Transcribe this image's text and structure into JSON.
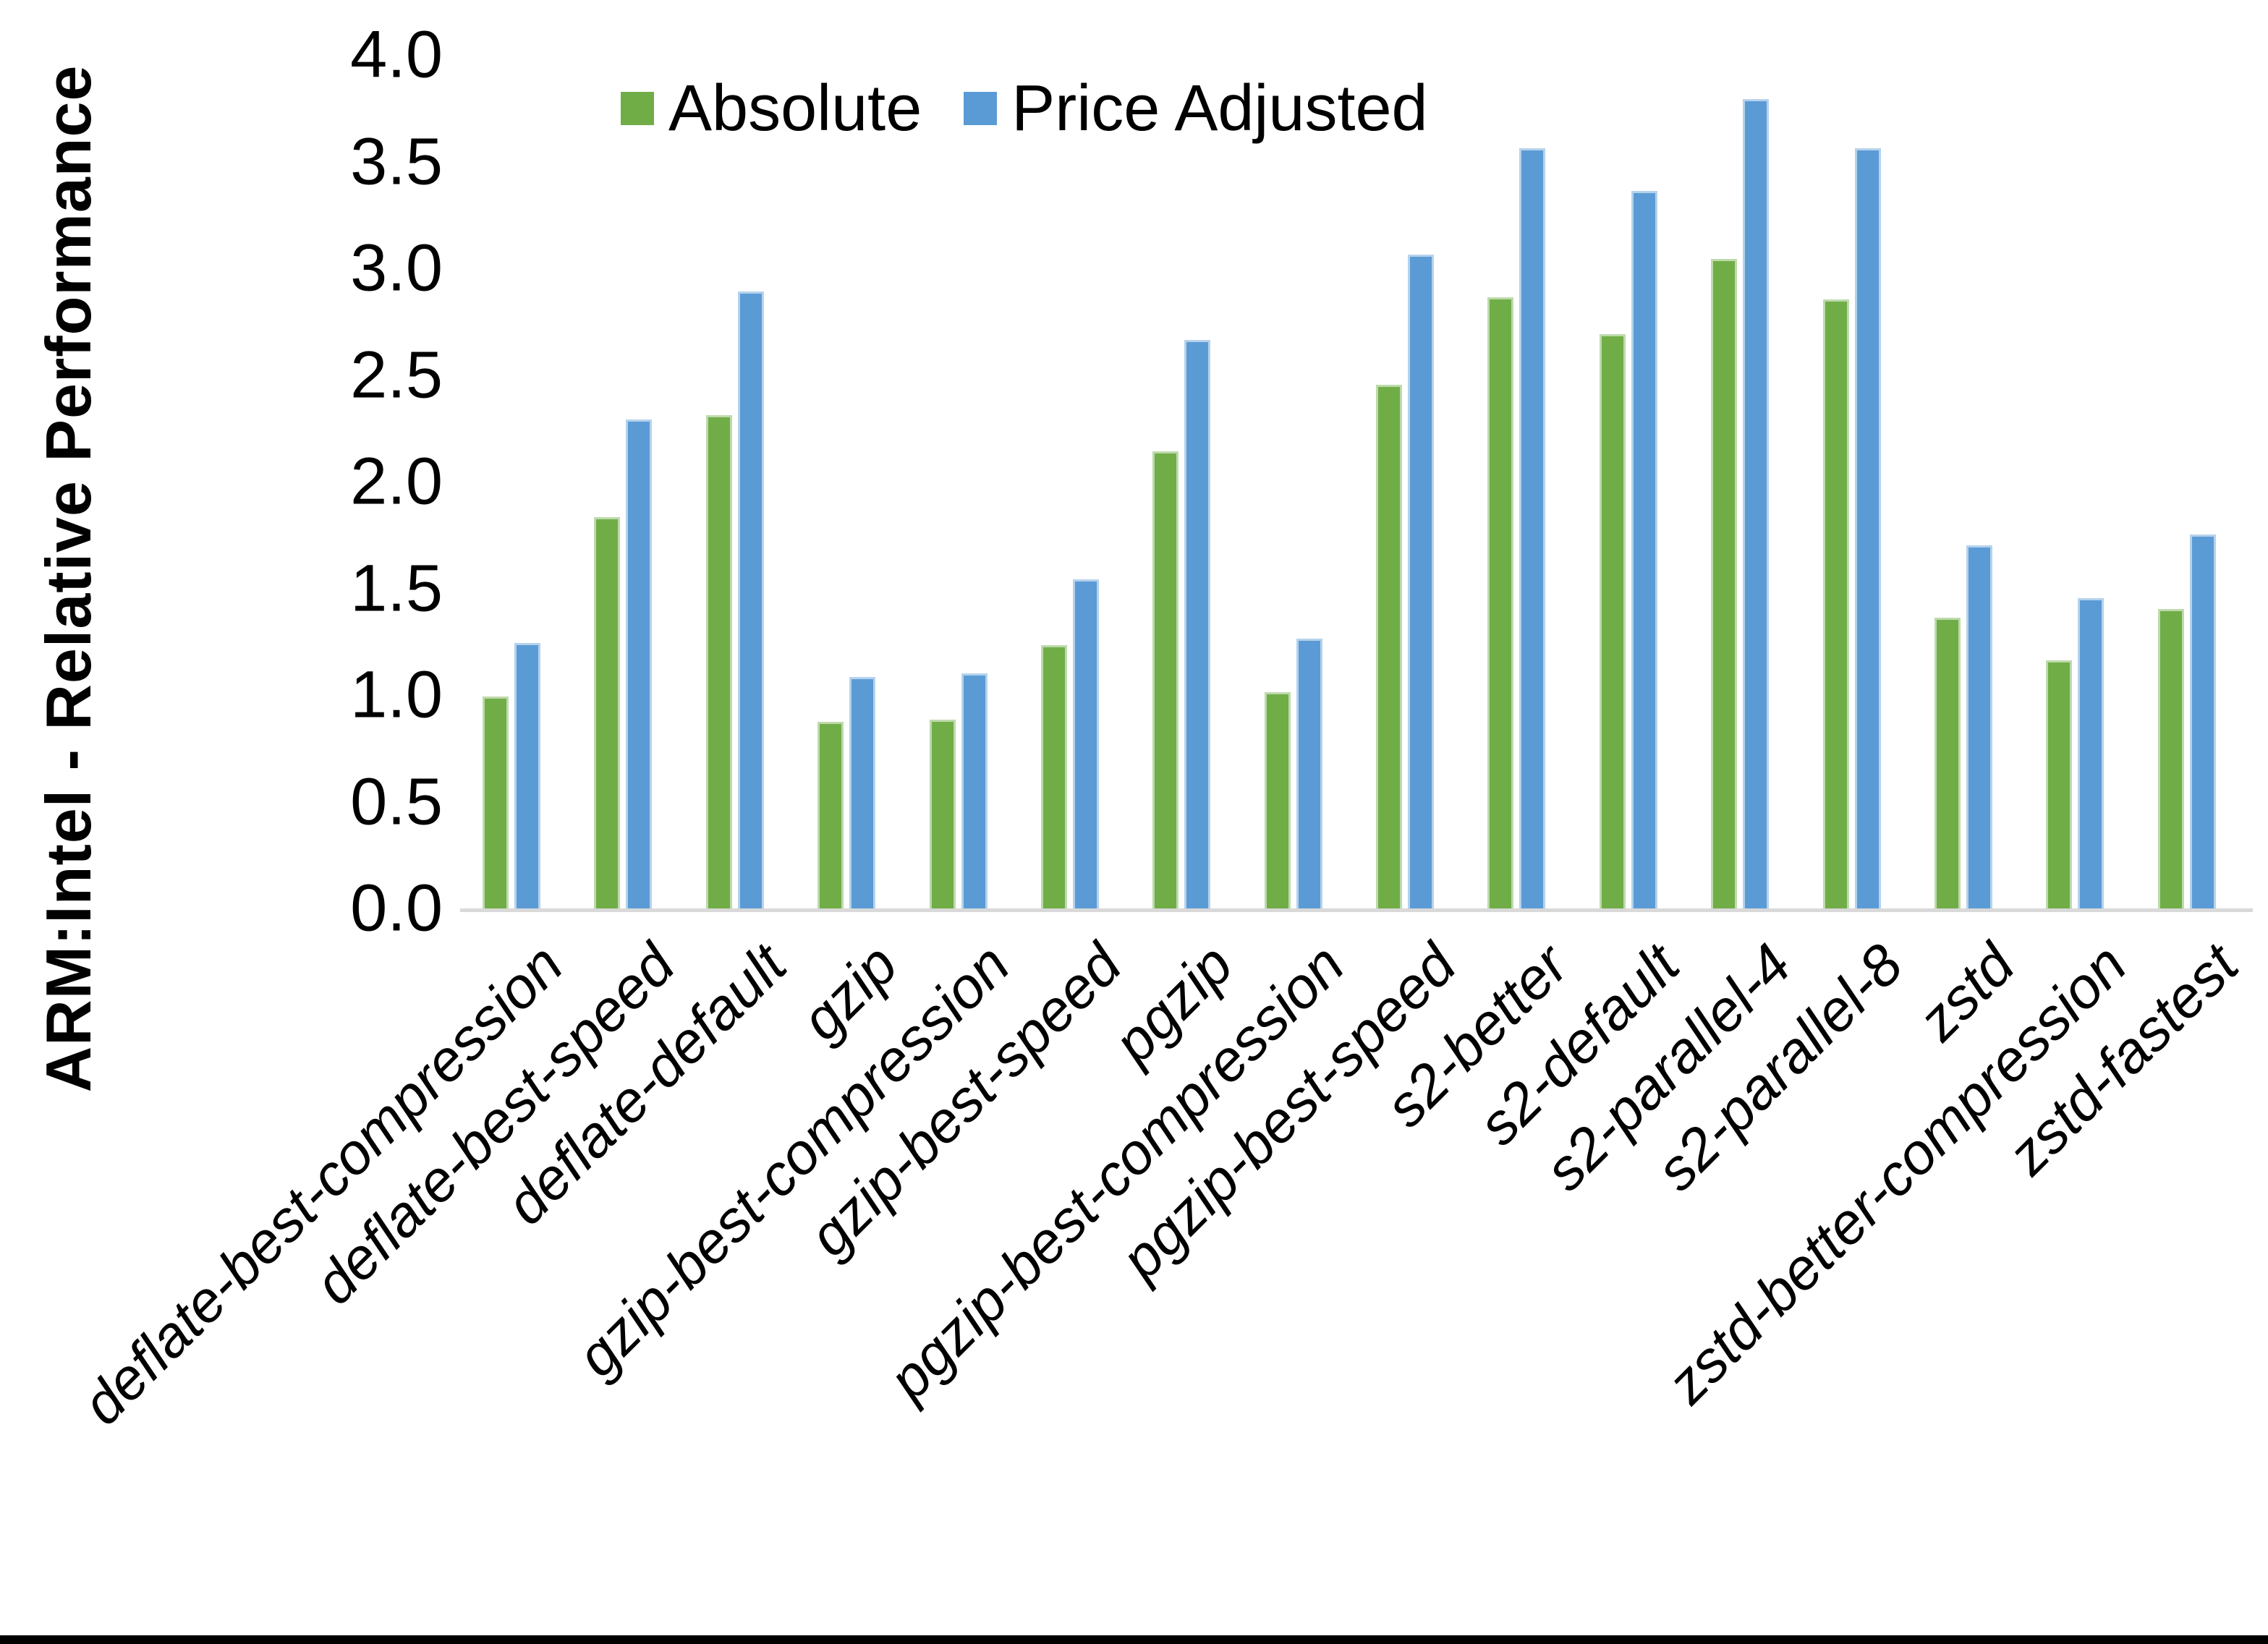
{
  "page": {
    "background_color": "#ffffff",
    "bottom_border_color": "#000000"
  },
  "chart_data": {
    "type": "bar",
    "title": "",
    "xlabel": "",
    "ylabel": "ARM:Intel - Relative Performance",
    "ylim": [
      0.0,
      4.0
    ],
    "ytick_labels": [
      "0.0",
      "0.5",
      "1.0",
      "1.5",
      "2.0",
      "2.5",
      "3.0",
      "3.5",
      "4.0"
    ],
    "grid": false,
    "legend_position": "top-center",
    "axis_line_color": "#d9d9d9",
    "categories": [
      "deflate-best-compression",
      "deflate-best-speed",
      "deflate-default",
      "gzip",
      "gzip-best-compression",
      "gzip-best-speed",
      "pgzip",
      "pgzip-best-compression",
      "pgzip-best-speed",
      "s2-better",
      "s2-default",
      "s2-parallel-4",
      "s2-parallel-8",
      "zstd",
      "zstd-better-compression",
      "zstd-fastest"
    ],
    "series": [
      {
        "name": "Absolute",
        "color": "#70AD47",
        "values": [
          1.0,
          1.84,
          2.32,
          0.88,
          0.89,
          1.24,
          2.15,
          1.02,
          2.46,
          2.87,
          2.7,
          3.05,
          2.86,
          1.37,
          1.17,
          1.41
        ]
      },
      {
        "name": "Price Adjusted",
        "color": "#5B9BD5",
        "values": [
          1.25,
          2.3,
          2.9,
          1.09,
          1.11,
          1.55,
          2.67,
          1.27,
          3.07,
          3.57,
          3.37,
          3.8,
          3.57,
          1.71,
          1.46,
          1.76
        ]
      }
    ]
  }
}
